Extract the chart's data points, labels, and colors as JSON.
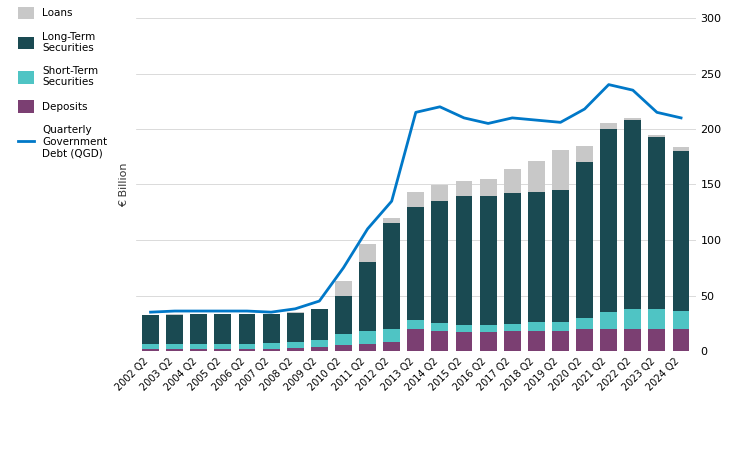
{
  "years": [
    "2002 Q2",
    "2003 Q2",
    "2004 Q2",
    "2005 Q2",
    "2006 Q2",
    "2007 Q2",
    "2008 Q2",
    "2009 Q2",
    "2010 Q2",
    "2011 Q2",
    "2012 Q2",
    "2013 Q2",
    "2014 Q2",
    "2015 Q2",
    "2016 Q2",
    "2017 Q2",
    "2018 Q2",
    "2019 Q2",
    "2020 Q2",
    "2021 Q2",
    "2022 Q2",
    "2023 Q2",
    "2024 Q2"
  ],
  "loans": [
    32,
    32,
    33,
    33,
    33,
    33,
    35,
    38,
    50,
    80,
    115,
    130,
    135,
    140,
    140,
    142,
    143,
    145,
    170,
    200,
    210,
    195,
    180
  ],
  "long_term_securities": [
    26,
    27,
    27,
    27,
    27,
    26,
    26,
    28,
    48,
    78,
    100,
    115,
    125,
    130,
    132,
    140,
    145,
    155,
    155,
    170,
    170,
    155,
    148
  ],
  "short_term_securities": [
    4,
    4,
    4,
    4,
    4,
    5,
    5,
    6,
    10,
    12,
    12,
    8,
    7,
    6,
    6,
    6,
    8,
    8,
    10,
    15,
    18,
    18,
    16
  ],
  "deposits": [
    2,
    2,
    2,
    2,
    2,
    2,
    3,
    4,
    5,
    6,
    8,
    20,
    18,
    17,
    17,
    18,
    18,
    18,
    20,
    20,
    20,
    20,
    20
  ],
  "qgd_line": [
    35,
    36,
    36,
    36,
    36,
    35,
    38,
    45,
    75,
    110,
    135,
    215,
    220,
    210,
    205,
    210,
    208,
    206,
    218,
    240,
    235,
    215,
    210
  ],
  "colors": {
    "loans": "#c8c8c8",
    "long_term_securities": "#1a4a52",
    "short_term_securities": "#4fc4c4",
    "deposits": "#7b3f72",
    "qgd_line": "#0078c8"
  },
  "ylabel": "€ Billion",
  "ylim": [
    0,
    300
  ],
  "yticks": [
    0,
    50,
    100,
    150,
    200,
    250,
    300
  ],
  "background_color": "#ffffff",
  "grid_color": "#cccccc"
}
